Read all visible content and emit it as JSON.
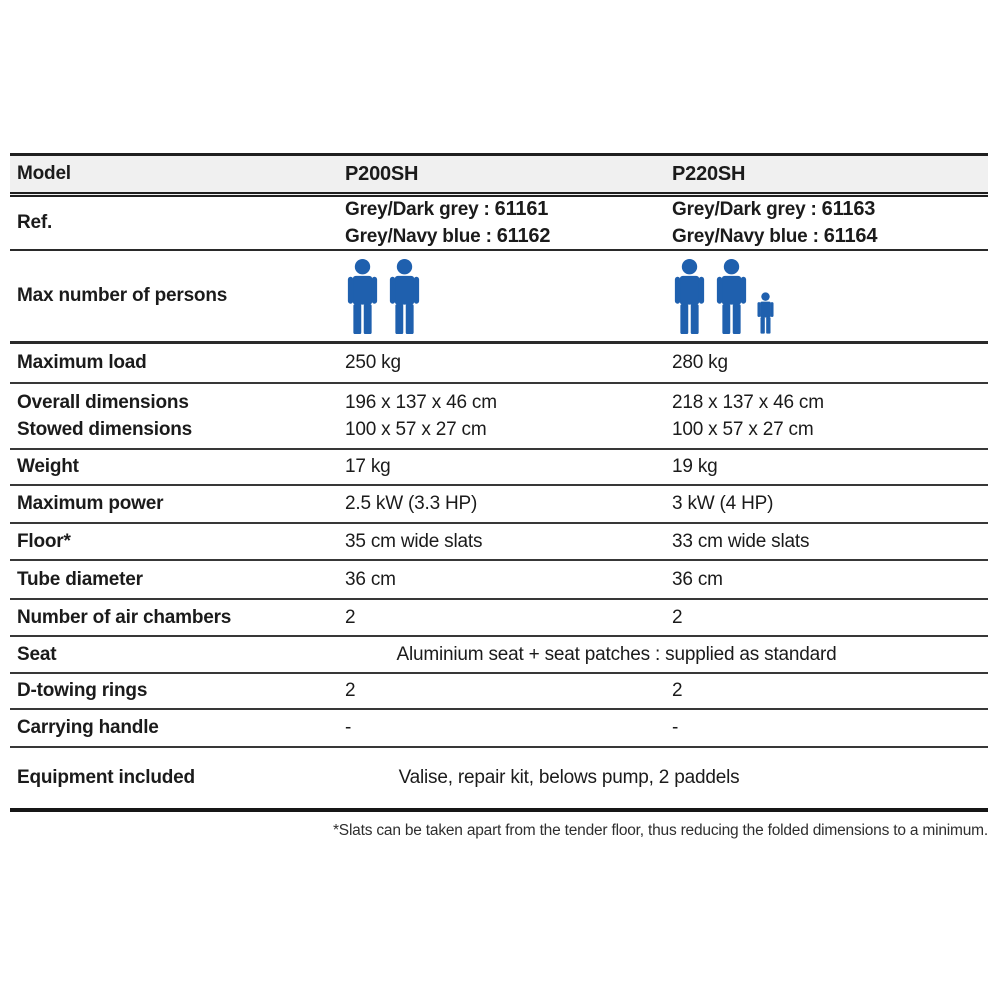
{
  "accent_color": "#1f60ae",
  "table": {
    "header": {
      "label": "Model",
      "models": [
        "P200SH",
        "P220SH"
      ]
    },
    "ref": {
      "label": "Ref.",
      "p200sh": [
        {
          "color_label": "Grey/Dark grey :",
          "code": "61161"
        },
        {
          "color_label": "Grey/Navy blue :",
          "code": "61162"
        }
      ],
      "p220sh": [
        {
          "color_label": "Grey/Dark grey :",
          "code": "61163"
        },
        {
          "color_label": "Grey/Navy blue :",
          "code": "61164"
        }
      ]
    },
    "persons": {
      "label": "Max number of persons",
      "icon_color": "#1f60ae",
      "groups": {
        "p200sh": {
          "adults": 2,
          "children": 0
        },
        "p220sh": {
          "adults": 2,
          "children": 1
        }
      }
    },
    "rows": {
      "maximum_load": {
        "label": "Maximum load",
        "v1": "250 kg",
        "v2": "280 kg"
      },
      "dimensions": {
        "label_line1": "Overall dimensions",
        "label_line2": "Stowed dimensions",
        "v1_line1": "196 x 137 x 46 cm",
        "v1_line2": "100 x 57 x 27 cm",
        "v2_line1": "218 x 137 x 46 cm",
        "v2_line2": "100 x 57 x 27 cm"
      },
      "weight": {
        "label": "Weight",
        "v1": "17 kg",
        "v2": "19 kg"
      },
      "maximum_power": {
        "label": "Maximum power",
        "v1": "2.5 kW (3.3 HP)",
        "v2": "3 kW (4 HP)"
      },
      "floor": {
        "label": "Floor*",
        "v1": "35 cm wide slats",
        "v2": "33 cm wide slats"
      },
      "tube_diameter": {
        "label": "Tube diameter",
        "v1": "36 cm",
        "v2": "36 cm"
      },
      "air_chambers": {
        "label": "Number of air chambers",
        "v1": "2",
        "v2": "2"
      },
      "seat": {
        "label": "Seat",
        "value": "Aluminium seat + seat patches : supplied as standard"
      },
      "d_towing_rings": {
        "label": "D-towing rings",
        "v1": "2",
        "v2": "2"
      },
      "carrying_handle": {
        "label": "Carrying handle",
        "v1": "-",
        "v2": "-"
      },
      "equipment": {
        "label": "Equipment included",
        "value": "Valise, repair kit, belows pump, 2 paddels"
      }
    },
    "footnote": "*Slats can be taken apart from the tender floor, thus reducing the folded dimensions to a minimum."
  }
}
